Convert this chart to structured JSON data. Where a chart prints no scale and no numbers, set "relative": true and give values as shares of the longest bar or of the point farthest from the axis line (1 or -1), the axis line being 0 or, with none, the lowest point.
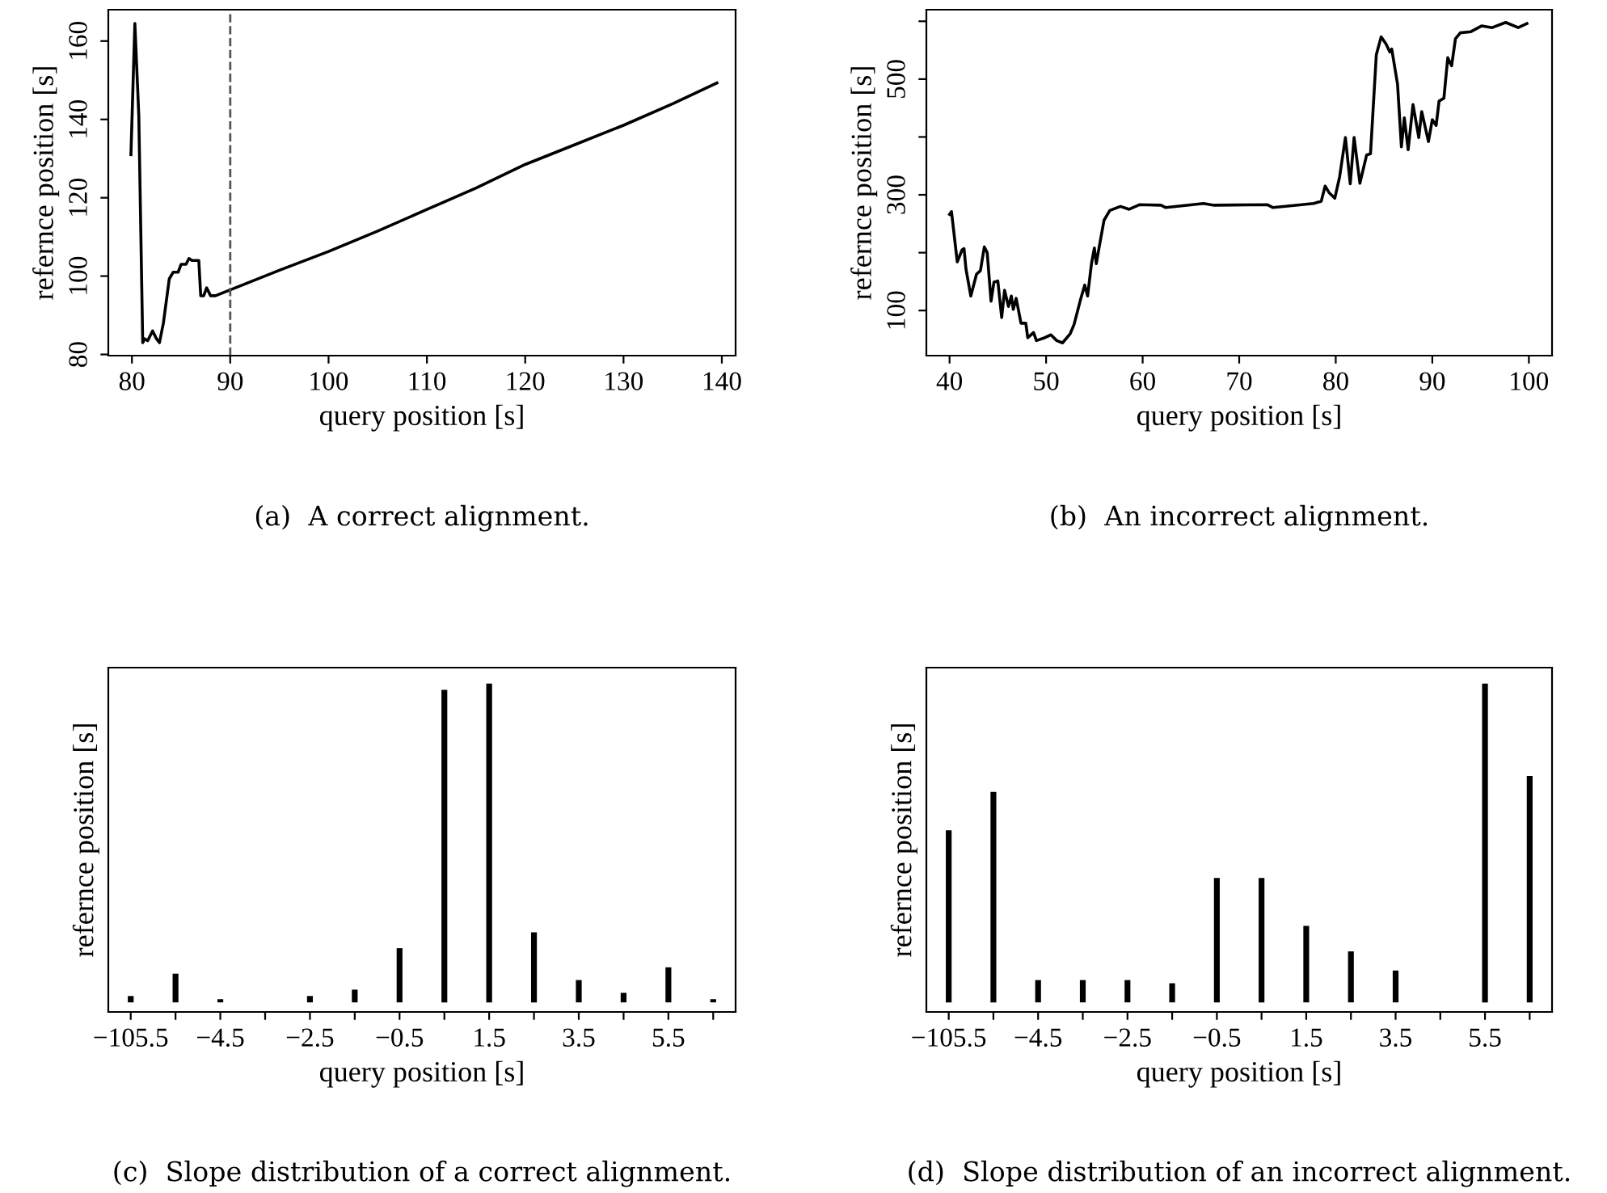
{
  "chart_data": [
    {
      "type": "line",
      "xlabel": "query position [s]",
      "ylabel": "refernce position [s]",
      "annotations": [
        "(a)  A correct alignment."
      ],
      "xlim": [
        77.6,
        141.4
      ],
      "ylim": [
        79.7,
        168
      ],
      "xticks": [
        80,
        90,
        100,
        110,
        120,
        130,
        140
      ],
      "yticks": [
        80,
        100,
        120,
        140,
        160
      ],
      "grid": false,
      "ref_lines": [
        {
          "axis": "x",
          "value": 90,
          "line_style": "dashed",
          "color": "#555555"
        }
      ],
      "series": [
        {
          "color": "#000000",
          "x": [
            79.9,
            80.3,
            80.7,
            81.1,
            81.3,
            81.6,
            82.1,
            82.5,
            82.8,
            83.2,
            83.8,
            84.2,
            84.7,
            85,
            85.5,
            85.8,
            86.1,
            86.8,
            87,
            87.3,
            87.6,
            88,
            88.5,
            90,
            95,
            100,
            105,
            110,
            115,
            120,
            125,
            130,
            135,
            139.5
          ],
          "values": [
            131,
            164.5,
            141,
            83,
            84,
            83.5,
            86,
            84,
            83,
            88,
            99.3,
            101,
            101,
            103,
            103,
            104.5,
            104,
            104,
            95,
            95,
            97,
            95,
            95,
            96.5,
            101.5,
            106.3,
            111.5,
            117,
            122.5,
            128.5,
            133.5,
            138.5,
            144,
            149.3
          ]
        }
      ]
    },
    {
      "type": "line",
      "xlabel": "query position [s]",
      "ylabel": "refernce position [s]",
      "annotations": [
        "(b)  An incorrect alignment."
      ],
      "xlim": [
        37.6,
        102.4
      ],
      "ylim": [
        22,
        620
      ],
      "xticks": [
        40,
        50,
        60,
        70,
        80,
        90,
        100
      ],
      "yticks": [
        100,
        {
          "value": 200,
          "label": null
        },
        300,
        {
          "value": 400,
          "label": null
        },
        500,
        {
          "value": 600,
          "label": null
        }
      ],
      "grid": false,
      "series": [
        {
          "color": "#000000",
          "x": [
            40,
            40.2,
            40.8,
            41.3,
            41.5,
            41.7,
            42.2,
            42.8,
            43.2,
            43.6,
            43.9,
            44.3,
            44.6,
            45,
            45.4,
            45.7,
            46.1,
            46.4,
            46.6,
            46.9,
            47.4,
            47.9,
            48.1,
            48.7,
            49,
            49.7,
            50.5,
            51.1,
            51.7,
            52.5,
            52.9,
            53.6,
            54,
            54.3,
            54.7,
            55,
            55.2,
            55.5,
            56,
            56.6,
            57.7,
            58.6,
            59.7,
            61.9,
            62.4,
            66.3,
            67.4,
            72.9,
            73.5,
            77.7,
            78.5,
            78.9,
            79.3,
            79.9,
            80.4,
            81,
            81.5,
            81.9,
            82.5,
            83.2,
            83.6,
            84.2,
            84.7,
            85.2,
            85.6,
            85.8,
            86.4,
            86.8,
            87.1,
            87.5,
            88,
            88.6,
            88.9,
            89.6,
            90,
            90.4,
            90.7,
            91.2,
            91.6,
            92,
            92.4,
            92.9,
            94,
            95.1,
            96.2,
            97.6,
            98.9,
            99.8
          ],
          "values": [
            266,
            271,
            184,
            205,
            207,
            172,
            125,
            163,
            169,
            210,
            200,
            116,
            149,
            151,
            88,
            135,
            107,
            125,
            102,
            121,
            78,
            78,
            53,
            62,
            48,
            52,
            58,
            48,
            44,
            60,
            76,
            121,
            144,
            125,
            181,
            208,
            181,
            210,
            256,
            273,
            280,
            275,
            283,
            282,
            278,
            285,
            282,
            283,
            278,
            285,
            289,
            315,
            304,
            294,
            331,
            399,
            319,
            399,
            320,
            369,
            371,
            542,
            573,
            561,
            547,
            552,
            491,
            383,
            433,
            378,
            456,
            399,
            444,
            392,
            430,
            420,
            462,
            467,
            537,
            523,
            570,
            580,
            582,
            592,
            589,
            598,
            589,
            596
          ]
        }
      ]
    },
    {
      "type": "bar",
      "relative": true,
      "tick_labels": "x",
      "xlabel": "query position [s]",
      "ylabel": "refernce position [s]",
      "annotations": [
        "(c)  Slope distribution of a correct alignment."
      ],
      "categories": [
        "−105.5",
        null,
        "−4.5",
        null,
        "−2.5",
        null,
        "−0.5",
        null,
        "1.5",
        null,
        "3.5",
        null,
        "5.5",
        null
      ],
      "series": [
        {
          "color": "#000000",
          "values": [
            0.02,
            0.09,
            0.01,
            0,
            0.02,
            0.04,
            0.17,
            0.98,
            1,
            0.22,
            0.07,
            0.03,
            0.11,
            0.01
          ]
        }
      ]
    },
    {
      "type": "bar",
      "relative": true,
      "tick_labels": "x",
      "xlabel": "query position [s]",
      "ylabel": "refernce position [s]",
      "annotations": [
        "(d)  Slope distribution of an incorrect alignment."
      ],
      "categories": [
        "−105.5",
        null,
        "−4.5",
        null,
        "−2.5",
        null,
        "−0.5",
        null,
        "1.5",
        null,
        "3.5",
        null,
        "5.5",
        null
      ],
      "series": [
        {
          "color": "#000000",
          "values": [
            0.54,
            0.66,
            0.07,
            0.07,
            0.07,
            0.06,
            0.39,
            0.39,
            0.24,
            0.16,
            0.1,
            0,
            1,
            0.71
          ]
        }
      ]
    }
  ]
}
